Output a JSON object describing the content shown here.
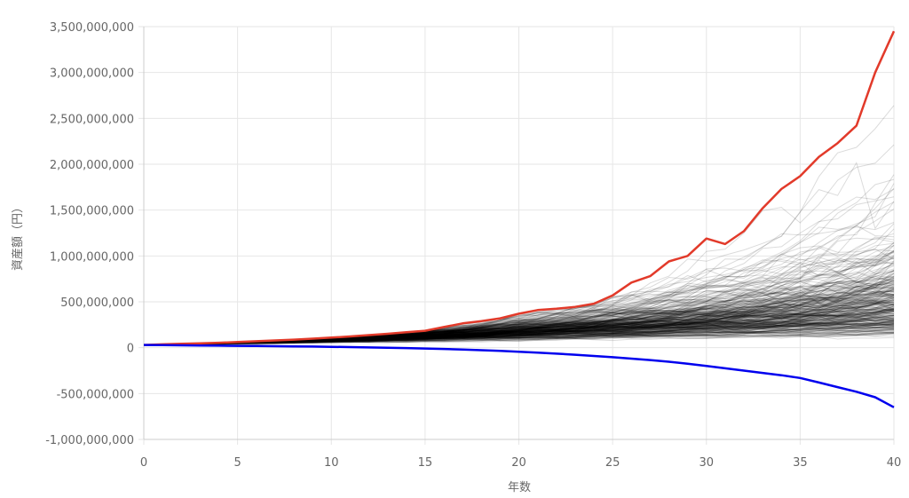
{
  "chart_data": {
    "type": "line",
    "xlabel": "年数",
    "ylabel": "資産額（円）",
    "xlim": [
      0,
      40
    ],
    "ylim": [
      -1000000000,
      3500000000
    ],
    "x_ticks": [
      "0",
      "5",
      "10",
      "15",
      "20",
      "25",
      "30",
      "35",
      "40"
    ],
    "y_ticks": [
      "3,500,000,000",
      "3,000,000,000",
      "2,500,000,000",
      "2,000,000,000",
      "1,500,000,000",
      "1,000,000,000",
      "500,000,000",
      "0",
      "-500,000,000",
      "-1,000,000,000"
    ],
    "grid": true,
    "colors": {
      "max": "#e23a2a",
      "min": "#0000ee",
      "simulations": "#000000",
      "grid": "#e6e6e6"
    },
    "x": [
      0,
      1,
      2,
      3,
      4,
      5,
      6,
      7,
      8,
      9,
      10,
      11,
      12,
      13,
      14,
      15,
      16,
      17,
      18,
      19,
      20,
      21,
      22,
      23,
      24,
      25,
      26,
      27,
      28,
      29,
      30,
      31,
      32,
      33,
      34,
      35,
      36,
      37,
      38,
      39,
      40
    ],
    "series": [
      {
        "role": "max",
        "values": [
          30000000,
          36000000,
          42000000,
          48000000,
          54000000,
          62000000,
          70000000,
          79000000,
          88000000,
          98000000,
          110000000,
          123000000,
          137000000,
          152000000,
          168000000,
          185000000,
          225000000,
          265000000,
          290000000,
          320000000,
          370000000,
          410000000,
          425000000,
          445000000,
          480000000,
          570000000,
          710000000,
          780000000,
          940000000,
          1000000000,
          1190000000,
          1130000000,
          1270000000,
          1520000000,
          1730000000,
          1870000000,
          2080000000,
          2230000000,
          2420000000,
          3000000000,
          3450000000
        ]
      },
      {
        "role": "min",
        "values": [
          30000000,
          28000000,
          26000000,
          24000000,
          22000000,
          20000000,
          18000000,
          16000000,
          14000000,
          12000000,
          9000000,
          6000000,
          3000000,
          0,
          -4000000,
          -9000000,
          -14000000,
          -20000000,
          -27000000,
          -35000000,
          -44000000,
          -54000000,
          -65000000,
          -77000000,
          -90000000,
          -104000000,
          -119000000,
          -135000000,
          -153000000,
          -175000000,
          -200000000,
          -225000000,
          -250000000,
          -275000000,
          -300000000,
          -330000000,
          -380000000,
          -430000000,
          -480000000,
          -540000000,
          -650000000
        ]
      }
    ],
    "simulations": {
      "count": 320
    }
  }
}
